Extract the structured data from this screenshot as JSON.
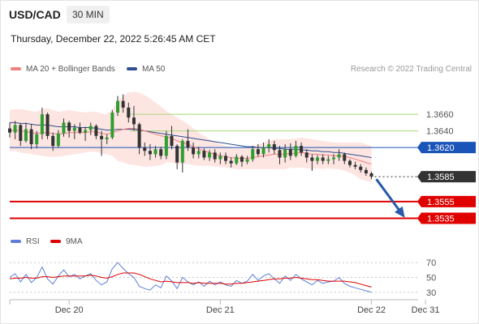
{
  "header": {
    "pair": "USD/CAD",
    "timeframe": "30 MIN",
    "datetime": "Thursday, December 22, 2022 5:26:45 AM CET"
  },
  "legend": {
    "ma20": {
      "label": "MA 20 + Bollinger Bands",
      "color": "#f08080"
    },
    "ma50": {
      "label": "MA 50",
      "color": "#2f4f8f"
    },
    "credit": "Research © 2022 Trading Central"
  },
  "rsi_legend": {
    "rsi": {
      "label": "RSI",
      "color": "#5b7fd6"
    },
    "ma9": {
      "label": "9MA",
      "color": "#e00000"
    }
  },
  "chart_data": [
    {
      "type": "line",
      "title": "",
      "ylim": [
        1.3515,
        1.37
      ],
      "x_tick_labels": [
        "Dec 20",
        "Dec 21",
        "Dec 22",
        "Dec 31"
      ],
      "x_tick_index": [
        11,
        39,
        67,
        77
      ],
      "n_slots": 80,
      "last_index": 67,
      "price_axis": [
        1.366,
        1.364
      ],
      "levels": [
        {
          "value": 1.366,
          "label": "1.3660",
          "kind": "resistance",
          "color": "#a5d67a"
        },
        {
          "value": 1.364,
          "label": "1.3640",
          "kind": "resistance",
          "color": "#a5d67a"
        },
        {
          "value": 1.362,
          "label": "1.3620",
          "kind": "pivot",
          "color": "#1a54b8"
        },
        {
          "value": 1.3585,
          "label": "1.3585",
          "kind": "last",
          "color": "#333333"
        },
        {
          "value": 1.3555,
          "label": "1.3555",
          "kind": "support",
          "color": "#e00000"
        },
        {
          "value": 1.3535,
          "label": "1.3535",
          "kind": "support",
          "color": "#e00000"
        }
      ],
      "arrow": {
        "from": [
          67,
          1.3582
        ],
        "to": [
          72,
          1.3538
        ],
        "color": "#2a5aa8"
      },
      "series": [
        {
          "name": "Price",
          "kind": "candlestick",
          "ohlc": [
            [
              1.3643,
              1.365,
              1.3632,
              1.3638
            ],
            [
              1.3638,
              1.3652,
              1.363,
              1.3647
            ],
            [
              1.3647,
              1.3649,
              1.3622,
              1.3628
            ],
            [
              1.3628,
              1.365,
              1.3626,
              1.3642
            ],
            [
              1.3642,
              1.3648,
              1.3618,
              1.3624
            ],
            [
              1.3624,
              1.364,
              1.3619,
              1.3636
            ],
            [
              1.3636,
              1.3668,
              1.363,
              1.366
            ],
            [
              1.366,
              1.3662,
              1.363,
              1.3634
            ],
            [
              1.3634,
              1.3638,
              1.3616,
              1.3622
            ],
            [
              1.3622,
              1.3641,
              1.362,
              1.3637
            ],
            [
              1.3637,
              1.3655,
              1.3633,
              1.365
            ],
            [
              1.365,
              1.3652,
              1.3632,
              1.364
            ],
            [
              1.364,
              1.3648,
              1.363,
              1.3644
            ],
            [
              1.3644,
              1.365,
              1.3636,
              1.3638
            ],
            [
              1.3638,
              1.3645,
              1.3628,
              1.3641
            ],
            [
              1.3641,
              1.365,
              1.3635,
              1.3646
            ],
            [
              1.3646,
              1.3648,
              1.363,
              1.3634
            ],
            [
              1.3634,
              1.364,
              1.361,
              1.363
            ],
            [
              1.363,
              1.3636,
              1.3624,
              1.3632
            ],
            [
              1.3632,
              1.3665,
              1.363,
              1.3662
            ],
            [
              1.3662,
              1.3682,
              1.3658,
              1.3676
            ],
            [
              1.3676,
              1.3684,
              1.3662,
              1.3668
            ],
            [
              1.3668,
              1.3674,
              1.365,
              1.3656
            ],
            [
              1.3656,
              1.367,
              1.364,
              1.3648
            ],
            [
              1.3648,
              1.365,
              1.3612,
              1.362
            ],
            [
              1.362,
              1.3626,
              1.361,
              1.3616
            ],
            [
              1.3616,
              1.3624,
              1.3605,
              1.3612
            ],
            [
              1.3612,
              1.3622,
              1.3608,
              1.3618
            ],
            [
              1.3618,
              1.3621,
              1.3606,
              1.361
            ],
            [
              1.361,
              1.364,
              1.3606,
              1.3634
            ],
            [
              1.3634,
              1.3646,
              1.3618,
              1.3622
            ],
            [
              1.3622,
              1.3624,
              1.3594,
              1.3602
            ],
            [
              1.3602,
              1.363,
              1.359,
              1.3628
            ],
            [
              1.3628,
              1.3642,
              1.3616,
              1.362
            ],
            [
              1.362,
              1.3626,
              1.3607,
              1.3612
            ],
            [
              1.3612,
              1.3621,
              1.3607,
              1.3616
            ],
            [
              1.3616,
              1.3619,
              1.3605,
              1.3608
            ],
            [
              1.3608,
              1.3617,
              1.3604,
              1.3614
            ],
            [
              1.3614,
              1.3618,
              1.3602,
              1.3606
            ],
            [
              1.3606,
              1.3614,
              1.36,
              1.361
            ],
            [
              1.361,
              1.3614,
              1.36,
              1.3604
            ],
            [
              1.3604,
              1.3608,
              1.3596,
              1.3601
            ],
            [
              1.3601,
              1.3612,
              1.3599,
              1.3609
            ],
            [
              1.3609,
              1.3611,
              1.3597,
              1.3603
            ],
            [
              1.3603,
              1.361,
              1.36,
              1.3606
            ],
            [
              1.3606,
              1.3622,
              1.3603,
              1.3618
            ],
            [
              1.3618,
              1.3624,
              1.3609,
              1.3612
            ],
            [
              1.3612,
              1.3626,
              1.3608,
              1.362
            ],
            [
              1.362,
              1.363,
              1.3614,
              1.3624
            ],
            [
              1.3624,
              1.3628,
              1.3612,
              1.3617
            ],
            [
              1.3617,
              1.3622,
              1.36,
              1.3608
            ],
            [
              1.3608,
              1.3624,
              1.3602,
              1.3618
            ],
            [
              1.3618,
              1.3625,
              1.3605,
              1.361
            ],
            [
              1.361,
              1.3628,
              1.3608,
              1.3622
            ],
            [
              1.3622,
              1.3626,
              1.361,
              1.3614
            ],
            [
              1.3614,
              1.3618,
              1.3602,
              1.3608
            ],
            [
              1.3608,
              1.3612,
              1.3592,
              1.3604
            ],
            [
              1.3604,
              1.3611,
              1.36,
              1.3608
            ],
            [
              1.3608,
              1.3612,
              1.36,
              1.3604
            ],
            [
              1.3604,
              1.361,
              1.36,
              1.3606
            ],
            [
              1.3606,
              1.3612,
              1.36,
              1.3608
            ],
            [
              1.3608,
              1.3618,
              1.3604,
              1.3612
            ],
            [
              1.3612,
              1.3614,
              1.36,
              1.3604
            ],
            [
              1.3604,
              1.3606,
              1.3596,
              1.3599
            ],
            [
              1.3599,
              1.3603,
              1.3594,
              1.3597
            ],
            [
              1.3597,
              1.36,
              1.359,
              1.3593
            ],
            [
              1.3593,
              1.3596,
              1.3586,
              1.3589
            ],
            [
              1.3589,
              1.3591,
              1.3582,
              1.3585
            ]
          ]
        },
        {
          "name": "MA 20",
          "values": [
            1.364,
            1.3641,
            1.364,
            1.3639,
            1.3638,
            1.3637,
            1.3638,
            1.3638,
            1.3637,
            1.3636,
            1.3637,
            1.3638,
            1.3638,
            1.3638,
            1.3638,
            1.3639,
            1.3639,
            1.3637,
            1.3636,
            1.3638,
            1.364,
            1.3642,
            1.3643,
            1.3643,
            1.3642,
            1.364,
            1.3638,
            1.3636,
            1.3634,
            1.3633,
            1.3631,
            1.3628,
            1.3626,
            1.3624,
            1.3621,
            1.3618,
            1.3616,
            1.3614,
            1.3612,
            1.361,
            1.3609,
            1.3608,
            1.3607,
            1.3607,
            1.3607,
            1.3608,
            1.3609,
            1.361,
            1.3611,
            1.3612,
            1.3612,
            1.3612,
            1.3613,
            1.3613,
            1.3614,
            1.3613,
            1.3612,
            1.3612,
            1.3611,
            1.3611,
            1.361,
            1.361,
            1.3609,
            1.3608,
            1.3606,
            1.3604,
            1.3602,
            1.36
          ]
        },
        {
          "name": "Bollinger Upper",
          "values": [
            1.3665,
            1.3666,
            1.3666,
            1.3665,
            1.3664,
            1.3663,
            1.3666,
            1.3667,
            1.3665,
            1.3663,
            1.3664,
            1.3665,
            1.3664,
            1.3663,
            1.3662,
            1.3663,
            1.3663,
            1.3661,
            1.366,
            1.3666,
            1.3676,
            1.3682,
            1.3686,
            1.3687,
            1.3686,
            1.3683,
            1.3679,
            1.3674,
            1.3669,
            1.3664,
            1.366,
            1.3656,
            1.3652,
            1.3648,
            1.3643,
            1.3638,
            1.3634,
            1.363,
            1.3627,
            1.3624,
            1.3622,
            1.3621,
            1.362,
            1.362,
            1.362,
            1.3622,
            1.3624,
            1.3626,
            1.3628,
            1.363,
            1.363,
            1.363,
            1.363,
            1.3631,
            1.3632,
            1.3631,
            1.363,
            1.3629,
            1.3628,
            1.3627,
            1.3626,
            1.3626,
            1.3626,
            1.3626,
            1.3626,
            1.3626,
            1.3624,
            1.3622
          ]
        },
        {
          "name": "Bollinger Lower",
          "values": [
            1.3615,
            1.3616,
            1.3614,
            1.3613,
            1.3612,
            1.3611,
            1.361,
            1.3609,
            1.3609,
            1.3609,
            1.361,
            1.3611,
            1.3612,
            1.3613,
            1.3614,
            1.3615,
            1.3615,
            1.3613,
            1.3612,
            1.361,
            1.3604,
            1.3602,
            1.36,
            1.3599,
            1.3598,
            1.3597,
            1.3597,
            1.3598,
            1.3599,
            1.3602,
            1.3602,
            1.36,
            1.36,
            1.36,
            1.3599,
            1.3598,
            1.3598,
            1.3598,
            1.3597,
            1.3596,
            1.3596,
            1.3595,
            1.3594,
            1.3594,
            1.3594,
            1.3594,
            1.3594,
            1.3594,
            1.3594,
            1.3594,
            1.3594,
            1.3594,
            1.3596,
            1.3595,
            1.3596,
            1.3595,
            1.3594,
            1.3595,
            1.3594,
            1.3595,
            1.3594,
            1.3594,
            1.3592,
            1.359,
            1.3586,
            1.3582,
            1.358,
            1.3578
          ]
        },
        {
          "name": "MA 50",
          "values": [
            1.365,
            1.365,
            1.3649,
            1.3649,
            1.3648,
            1.3647,
            1.3647,
            1.3647,
            1.3646,
            1.3645,
            1.3645,
            1.3645,
            1.3645,
            1.3644,
            1.3644,
            1.3644,
            1.3643,
            1.3642,
            1.3641,
            1.3641,
            1.3642,
            1.3642,
            1.3642,
            1.3642,
            1.3641,
            1.364,
            1.3639,
            1.3638,
            1.3637,
            1.3636,
            1.3635,
            1.3634,
            1.3633,
            1.3632,
            1.3631,
            1.363,
            1.3629,
            1.3628,
            1.3627,
            1.3626,
            1.3625,
            1.3624,
            1.3623,
            1.3622,
            1.3621,
            1.3621,
            1.362,
            1.362,
            1.362,
            1.3619,
            1.3619,
            1.3618,
            1.3618,
            1.3618,
            1.3617,
            1.3617,
            1.3616,
            1.3616,
            1.3615,
            1.3615,
            1.3614,
            1.3614,
            1.3613,
            1.3612,
            1.3611,
            1.361,
            1.3609,
            1.3608
          ]
        }
      ]
    },
    {
      "type": "line",
      "title": "",
      "ylim": [
        20,
        80
      ],
      "y_ticks": [
        70,
        50,
        30
      ],
      "reference_lines": [
        70,
        50,
        30
      ],
      "series": [
        {
          "name": "RSI",
          "values": [
            50,
            55,
            44,
            54,
            43,
            50,
            64,
            48,
            41,
            52,
            60,
            51,
            54,
            48,
            52,
            55,
            46,
            40,
            44,
            62,
            70,
            62,
            55,
            50,
            38,
            35,
            33,
            40,
            36,
            52,
            45,
            35,
            50,
            44,
            40,
            44,
            38,
            45,
            40,
            44,
            40,
            38,
            46,
            42,
            45,
            54,
            46,
            52,
            55,
            48,
            42,
            52,
            46,
            54,
            48,
            44,
            40,
            46,
            42,
            44,
            45,
            50,
            42,
            38,
            36,
            34,
            32,
            30
          ]
        },
        {
          "name": "9MA",
          "values": [
            48,
            49,
            49,
            50,
            49,
            49,
            51,
            51,
            50,
            51,
            52,
            52,
            52,
            52,
            52,
            53,
            52,
            50,
            49,
            51,
            54,
            56,
            56,
            56,
            54,
            51,
            48,
            46,
            44,
            45,
            44,
            43,
            43,
            43,
            42,
            43,
            42,
            42,
            42,
            42,
            41,
            41,
            42,
            42,
            43,
            44,
            45,
            46,
            47,
            48,
            48,
            49,
            49,
            50,
            49,
            48,
            47,
            47,
            46,
            45,
            45,
            45,
            45,
            44,
            43,
            41,
            39,
            37
          ]
        }
      ]
    }
  ]
}
